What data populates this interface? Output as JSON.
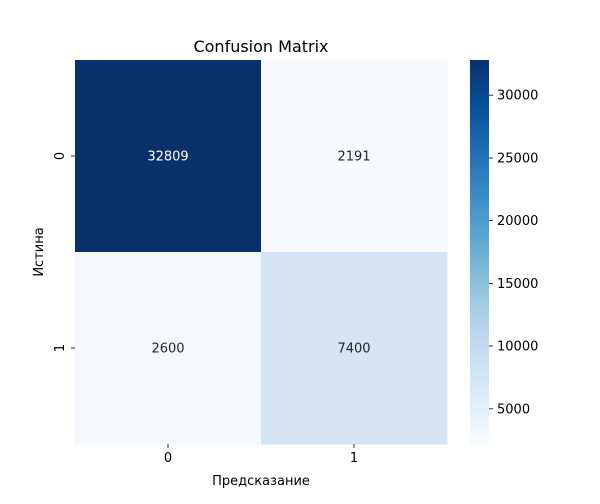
{
  "chart_data": {
    "type": "heatmap",
    "title": "Confusion Matrix",
    "xlabel": "Предсказание",
    "ylabel": "Истина",
    "x_categories": [
      "0",
      "1"
    ],
    "y_categories": [
      "0",
      "1"
    ],
    "values": [
      [
        32809,
        2191
      ],
      [
        2600,
        7400
      ]
    ],
    "colormap": "Blues",
    "color_low": "#f7fbff",
    "color_high": "#08306b",
    "colorbar": {
      "min": 2191,
      "max": 32809,
      "ticks": [
        5000,
        10000,
        15000,
        20000,
        25000,
        30000
      ],
      "tick_labels": [
        "5000",
        "10000",
        "15000",
        "20000",
        "25000",
        "30000"
      ]
    },
    "annot_dark_text": "#262626",
    "annot_light_text": "#ffffff",
    "grid": false
  }
}
